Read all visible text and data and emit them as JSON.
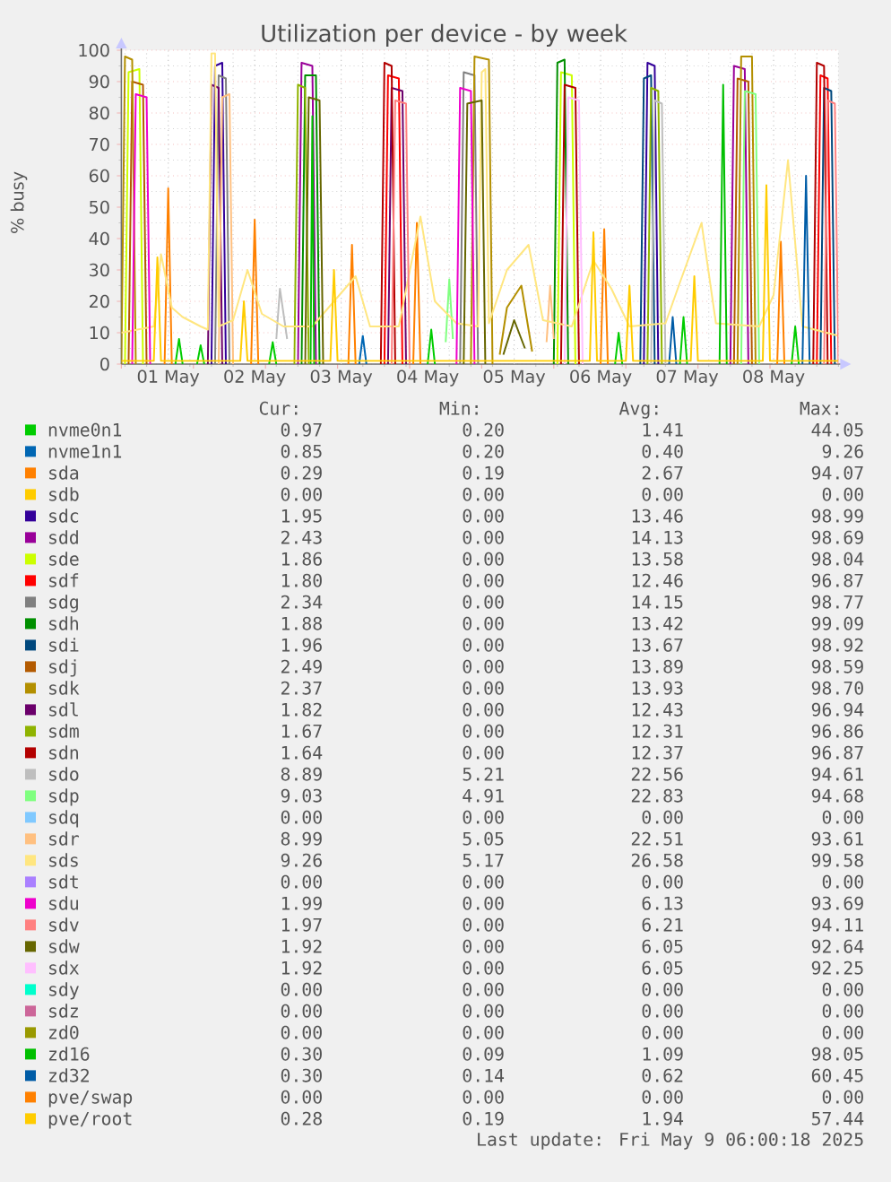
{
  "chart_data": {
    "type": "line",
    "title": "Utilization per device - by week",
    "ylabel": "% busy",
    "xlim": [
      "2025-04-30T23:00",
      "2025-05-09T06:00"
    ],
    "xticks": [
      {
        "value": "2025-05-01T00:00",
        "label": null
      },
      {
        "value": "2025-05-01T06:00",
        "label": null
      },
      {
        "value": "2025-05-01T12:00",
        "label": "01 May"
      },
      {
        "value": "2025-05-01T18:00",
        "label": null
      },
      {
        "value": "2025-05-02T00:00",
        "label": null
      },
      {
        "value": "2025-05-02T06:00",
        "label": null
      },
      {
        "value": "2025-05-02T12:00",
        "label": "02 May"
      },
      {
        "value": "2025-05-02T18:00",
        "label": null
      },
      {
        "value": "2025-05-03T00:00",
        "label": null
      },
      {
        "value": "2025-05-03T06:00",
        "label": null
      },
      {
        "value": "2025-05-03T12:00",
        "label": "03 May"
      },
      {
        "value": "2025-05-03T18:00",
        "label": null
      },
      {
        "value": "2025-05-04T00:00",
        "label": null
      },
      {
        "value": "2025-05-04T06:00",
        "label": null
      },
      {
        "value": "2025-05-04T12:00",
        "label": "04 May"
      },
      {
        "value": "2025-05-04T18:00",
        "label": null
      },
      {
        "value": "2025-05-05T00:00",
        "label": null
      },
      {
        "value": "2025-05-05T06:00",
        "label": null
      },
      {
        "value": "2025-05-05T12:00",
        "label": "05 May"
      },
      {
        "value": "2025-05-05T18:00",
        "label": null
      },
      {
        "value": "2025-05-06T00:00",
        "label": null
      },
      {
        "value": "2025-05-06T06:00",
        "label": null
      },
      {
        "value": "2025-05-06T12:00",
        "label": "06 May"
      },
      {
        "value": "2025-05-06T18:00",
        "label": null
      },
      {
        "value": "2025-05-07T00:00",
        "label": null
      },
      {
        "value": "2025-05-07T06:00",
        "label": null
      },
      {
        "value": "2025-05-07T12:00",
        "label": "07 May"
      },
      {
        "value": "2025-05-07T18:00",
        "label": null
      },
      {
        "value": "2025-05-08T00:00",
        "label": null
      },
      {
        "value": "2025-05-08T06:00",
        "label": null
      },
      {
        "value": "2025-05-08T12:00",
        "label": "08 May"
      },
      {
        "value": "2025-05-08T18:00",
        "label": null
      },
      {
        "value": "2025-05-09T00:00",
        "label": null
      },
      {
        "value": "2025-05-09T06:00",
        "label": null
      }
    ],
    "ylim": [
      0,
      100
    ],
    "yticks": [
      0,
      {
        "value": 5,
        "label": null
      },
      10,
      {
        "value": 15,
        "label": null
      },
      20,
      {
        "value": 25,
        "label": null
      },
      30,
      {
        "value": 35,
        "label": null
      },
      40,
      {
        "value": 45,
        "label": null
      },
      50,
      {
        "value": 55,
        "label": null
      },
      60,
      {
        "value": 65,
        "label": null
      },
      70,
      {
        "value": 75,
        "label": null
      },
      80,
      {
        "value": 85,
        "label": null
      },
      90,
      {
        "value": 95,
        "label": null
      },
      100
    ],
    "grid": true,
    "legend": "bottom",
    "series": [
      {
        "name": "nvme0n1",
        "color": "#00cc00",
        "x": [
          "2025-05-01T14:00",
          "2025-05-01T15:00",
          "2025-05-01T16:00",
          "2025-05-01T18:00",
          "2025-05-01T20:00",
          "2025-05-01T21:00",
          "2025-05-01T22:00",
          "2025-05-02T06:00",
          "2025-05-02T16:00",
          "2025-05-02T17:00",
          "2025-05-02T18:00",
          "2025-05-03T12:00",
          "2025-05-04T12:00",
          "2025-05-04T13:00",
          "2025-05-04T14:00",
          "2025-05-05T14:00",
          "2025-05-06T16:00",
          "2025-05-06T17:00",
          "2025-05-06T18:00",
          "2025-05-07T02:00",
          "2025-05-07T10:00",
          "2025-05-07T11:00",
          "2025-05-07T12:00",
          "2025-05-08T02:00",
          "2025-05-08T17:00",
          "2025-05-08T18:00",
          "2025-05-08T19:00"
        ],
        "values": [
          0,
          8,
          0,
          null,
          0,
          6,
          0,
          null,
          0,
          7,
          0,
          null,
          0,
          11,
          0,
          null,
          0,
          10,
          0,
          null,
          0,
          15,
          0,
          null,
          0,
          12,
          0
        ]
      },
      {
        "name": "nvme1n1",
        "color": "#0066b3",
        "x": [
          "2025-05-03T17:00",
          "2025-05-03T18:00",
          "2025-05-03T19:00"
        ],
        "values": [
          0,
          9,
          0
        ]
      },
      {
        "name": "sda",
        "color": "#ff8000",
        "x": [
          "2025-05-01T11:00",
          "2025-05-01T12:00",
          "2025-05-01T13:00",
          "2025-05-02T00:00",
          "2025-05-02T11:00",
          "2025-05-02T12:00",
          "2025-05-02T13:00",
          "2025-05-03T00:00",
          "2025-05-03T14:00",
          "2025-05-03T15:00",
          "2025-05-03T16:00",
          "2025-05-04T00:00",
          "2025-05-04T08:00",
          "2025-05-04T09:00",
          "2025-05-04T10:00",
          "2025-05-05T14:00",
          "2025-05-06T12:00",
          "2025-05-06T13:00",
          "2025-05-06T14:00",
          "2025-05-07T16:00",
          "2025-05-08T13:00",
          "2025-05-08T14:00",
          "2025-05-08T15:00"
        ],
        "values": [
          0,
          56,
          0,
          null,
          0,
          46,
          0,
          null,
          0,
          38,
          0,
          null,
          0,
          45,
          0,
          null,
          0,
          43,
          0,
          null,
          0,
          39,
          0
        ]
      },
      {
        "name": "sdb",
        "color": "#ffcc00"
      },
      {
        "name": "sdc",
        "color": "#330099",
        "x": [
          "2025-05-02T00:00",
          "2025-05-02T01:00",
          "2025-05-02T03:00",
          "2025-05-02T04:00",
          "2025-05-04T12:00",
          "2025-05-07T00:00",
          "2025-05-07T01:00",
          "2025-05-07T03:00",
          "2025-05-07T04:00"
        ],
        "values": [
          0,
          95,
          96,
          0,
          null,
          0,
          96,
          95,
          0
        ]
      },
      {
        "name": "sdd",
        "color": "#990099",
        "x": [
          "2025-05-03T00:00",
          "2025-05-03T01:00",
          "2025-05-03T04:00",
          "2025-05-03T05:00",
          "2025-05-05T12:00",
          "2025-05-08T00:00",
          "2025-05-08T01:00",
          "2025-05-08T04:00",
          "2025-05-08T05:00"
        ],
        "values": [
          0,
          96,
          95,
          0,
          null,
          0,
          95,
          94,
          0
        ]
      },
      {
        "name": "sde",
        "color": "#ccff00",
        "x": [
          "2025-05-01T00:00",
          "2025-05-01T01:00",
          "2025-05-01T04:00",
          "2025-05-01T05:00",
          "2025-05-03T12:00",
          "2025-05-06T00:00",
          "2025-05-06T01:00",
          "2025-05-06T04:00",
          "2025-05-06T05:00"
        ],
        "values": [
          0,
          93,
          94,
          0,
          null,
          0,
          93,
          92,
          0
        ]
      },
      {
        "name": "sdf",
        "color": "#ff0000",
        "x": [
          "2025-05-04T00:00",
          "2025-05-04T01:00",
          "2025-05-04T04:00",
          "2025-05-04T05:00",
          "2025-05-06T12:00",
          "2025-05-09T00:00",
          "2025-05-09T01:00",
          "2025-05-09T03:00",
          "2025-05-09T04:00"
        ],
        "values": [
          0,
          92,
          91,
          0,
          null,
          0,
          92,
          91,
          0
        ]
      },
      {
        "name": "sdg",
        "color": "#808080",
        "x": [
          "2025-05-02T01:00",
          "2025-05-02T02:00",
          "2025-05-02T04:00",
          "2025-05-02T05:00",
          "2025-05-03T12:00",
          "2025-05-04T21:00",
          "2025-05-04T22:00",
          "2025-05-05T01:00",
          "2025-05-05T02:00"
        ],
        "values": [
          0,
          92,
          91,
          0,
          null,
          0,
          93,
          92,
          0
        ]
      },
      {
        "name": "sdh",
        "color": "#008f00",
        "x": [
          "2025-05-03T01:00",
          "2025-05-03T02:00",
          "2025-05-03T05:00",
          "2025-05-03T06:00",
          "2025-05-04T12:00",
          "2025-05-05T23:00",
          "2025-05-06T00:00",
          "2025-05-06T02:00",
          "2025-05-06T03:00"
        ],
        "values": [
          0,
          92,
          92,
          0,
          null,
          0,
          96,
          97,
          0
        ]
      },
      {
        "name": "sdi",
        "color": "#00487d",
        "x": [
          "2025-05-06T23:00",
          "2025-05-07T00:00",
          "2025-05-07T02:00",
          "2025-05-07T03:00",
          "2025-05-08T12:00",
          "2025-05-09T01:00",
          "2025-05-09T02:00",
          "2025-05-09T04:00",
          "2025-05-09T05:00"
        ],
        "values": [
          0,
          91,
          92,
          0,
          null,
          0,
          88,
          87,
          0
        ]
      },
      {
        "name": "sdj",
        "color": "#b35a00",
        "x": [
          "2025-05-01T01:00",
          "2025-05-01T02:00",
          "2025-05-01T05:00",
          "2025-05-01T06:00",
          "2025-05-04T12:00",
          "2025-05-08T01:00",
          "2025-05-08T02:00",
          "2025-05-08T05:00",
          "2025-05-08T06:00"
        ],
        "values": [
          0,
          90,
          89,
          0,
          null,
          0,
          91,
          90,
          0
        ]
      },
      {
        "name": "sdk",
        "color": "#b38f00",
        "x": [
          "2025-04-30T23:00",
          "2025-05-01T00:00",
          "2025-05-01T02:00",
          "2025-05-01T03:00",
          "2025-05-02T12:00",
          "2025-05-05T00:00",
          "2025-05-05T01:00",
          "2025-05-05T05:00",
          "2025-05-05T06:00",
          "2025-05-05T07:00",
          "2025-05-05T08:00",
          "2025-05-05T10:00",
          "2025-05-05T14:00",
          "2025-05-05T17:00",
          "2025-05-06T12:00",
          "2025-05-08T02:00",
          "2025-05-08T03:00",
          "2025-05-08T06:00",
          "2025-05-08T07:00"
        ],
        "values": [
          0,
          98,
          97,
          0,
          null,
          0,
          98,
          97,
          0,
          null,
          3,
          18,
          25,
          4,
          null,
          0,
          98,
          98,
          0
        ]
      },
      {
        "name": "sdl",
        "color": "#6b006b",
        "x": [
          "2025-05-01T23:00",
          "2025-05-02T00:00",
          "2025-05-02T02:00",
          "2025-05-02T03:00",
          "2025-05-03T12:00",
          "2025-05-04T01:00",
          "2025-05-04T02:00",
          "2025-05-04T05:00",
          "2025-05-04T06:00"
        ],
        "values": [
          0,
          89,
          88,
          0,
          null,
          0,
          88,
          87,
          0
        ]
      },
      {
        "name": "sdm",
        "color": "#8fb300",
        "x": [
          "2025-05-02T23:00",
          "2025-05-03T00:00",
          "2025-05-03T02:00",
          "2025-05-03T03:00",
          "2025-05-05T12:00",
          "2025-05-07T01:00",
          "2025-05-07T02:00",
          "2025-05-07T04:00",
          "2025-05-07T05:00"
        ],
        "values": [
          0,
          89,
          88,
          0,
          null,
          0,
          88,
          87,
          0
        ]
      },
      {
        "name": "sdn",
        "color": "#b30000",
        "x": [
          "2025-05-03T23:00",
          "2025-05-04T00:00",
          "2025-05-04T02:00",
          "2025-05-04T03:00",
          "2025-05-05T12:00",
          "2025-05-06T01:00",
          "2025-05-06T02:00",
          "2025-05-06T05:00",
          "2025-05-06T06:00",
          "2025-05-07T12:00",
          "2025-05-08T23:00",
          "2025-05-09T00:00",
          "2025-05-09T02:00",
          "2025-05-09T03:00"
        ],
        "values": [
          0,
          96,
          95,
          0,
          null,
          0,
          89,
          88,
          0,
          null,
          0,
          96,
          95,
          0
        ]
      },
      {
        "name": "sdo",
        "color": "#bebebe",
        "x": [
          "2025-05-02T18:00",
          "2025-05-02T19:00",
          "2025-05-02T21:00",
          "2025-05-04T12:00",
          "2025-05-07T02:00",
          "2025-05-07T03:00",
          "2025-05-07T05:00",
          "2025-05-07T06:00"
        ],
        "values": [
          8,
          24,
          8,
          null,
          0,
          84,
          83,
          0
        ]
      },
      {
        "name": "sdp",
        "color": "#80ff80",
        "x": [
          "2025-05-04T17:00",
          "2025-05-04T18:00",
          "2025-05-04T19:00",
          "2025-05-06T12:00",
          "2025-05-08T03:00",
          "2025-05-08T04:00",
          "2025-05-08T07:00",
          "2025-05-08T08:00"
        ],
        "values": [
          7,
          27,
          8,
          null,
          0,
          87,
          86,
          0
        ]
      },
      {
        "name": "sdq",
        "color": "#80c9ff"
      },
      {
        "name": "sdr",
        "color": "#ffc080",
        "x": [
          "2025-05-02T02:00",
          "2025-05-02T03:00",
          "2025-05-02T05:00",
          "2025-05-02T06:00",
          "2025-05-03T12:00",
          "2025-05-05T21:00",
          "2025-05-05T22:00",
          "2025-05-05T23:00"
        ],
        "values": [
          0,
          85,
          86,
          0,
          null,
          7,
          25,
          8
        ]
      },
      {
        "name": "sds",
        "color": "#ffe680",
        "x": [
          "2025-04-30T23:00",
          "2025-05-01T08:00",
          "2025-05-01T10:00",
          "2025-05-01T13:00",
          "2025-05-01T16:00",
          "2025-05-01T21:00",
          "2025-05-01T23:00",
          "2025-05-02T00:00",
          "2025-05-02T01:00",
          "2025-05-02T02:00",
          "2025-05-02T06:00",
          "2025-05-02T10:00",
          "2025-05-02T14:00",
          "2025-05-02T20:00",
          "2025-05-03T04:00",
          "2025-05-03T10:00",
          "2025-05-03T16:00",
          "2025-05-03T20:00",
          "2025-05-04T04:00",
          "2025-05-04T10:00",
          "2025-05-04T14:00",
          "2025-05-04T20:00",
          "2025-05-05T02:00",
          "2025-05-05T03:00",
          "2025-05-05T04:00",
          "2025-05-05T05:00",
          "2025-05-05T10:00",
          "2025-05-05T16:00",
          "2025-05-05T20:00",
          "2025-05-06T04:00",
          "2025-05-06T10:00",
          "2025-05-06T15:00",
          "2025-05-06T20:00",
          "2025-05-07T06:00",
          "2025-05-07T10:00",
          "2025-05-07T16:00",
          "2025-05-07T20:00",
          "2025-05-08T08:00",
          "2025-05-08T12:00",
          "2025-05-08T16:00",
          "2025-05-08T20:00",
          "2025-05-09T06:00"
        ],
        "values": [
          10,
          12,
          35,
          18,
          15,
          12,
          11,
          99,
          99,
          12,
          14,
          30,
          16,
          12,
          12,
          20,
          28,
          12,
          12,
          47,
          20,
          13,
          12,
          93,
          94,
          13,
          30,
          38,
          14,
          12,
          33,
          24,
          12,
          13,
          26,
          45,
          13,
          12,
          22,
          65,
          12,
          9
        ]
      },
      {
        "name": "sdt",
        "color": "#aa80ff"
      },
      {
        "name": "sdu",
        "color": "#ee00cc",
        "x": [
          "2025-05-01T02:00",
          "2025-05-01T03:00",
          "2025-05-01T06:00",
          "2025-05-01T07:00",
          "2025-05-02T12:00",
          "2025-05-04T20:00",
          "2025-05-04T21:00",
          "2025-05-05T00:00",
          "2025-05-05T01:00"
        ],
        "values": [
          0,
          86,
          85,
          0,
          null,
          0,
          88,
          87,
          0
        ]
      },
      {
        "name": "sdv",
        "color": "#ff8080",
        "x": [
          "2025-05-04T02:00",
          "2025-05-04T03:00",
          "2025-05-04T06:00",
          "2025-05-04T07:00",
          "2025-05-06T12:00",
          "2025-05-09T02:00",
          "2025-05-09T03:00",
          "2025-05-09T05:00",
          "2025-05-09T06:00"
        ],
        "values": [
          0,
          84,
          83,
          0,
          null,
          0,
          84,
          83,
          0
        ]
      },
      {
        "name": "sdw",
        "color": "#666600",
        "x": [
          "2025-05-03T02:00",
          "2025-05-03T03:00",
          "2025-05-03T06:00",
          "2025-05-03T07:00",
          "2025-05-04T12:00",
          "2025-05-04T22:00",
          "2025-05-04T23:00",
          "2025-05-05T03:00",
          "2025-05-05T04:00",
          "2025-05-05T07:00",
          "2025-05-05T09:00",
          "2025-05-05T12:00",
          "2025-05-05T15:00"
        ],
        "values": [
          0,
          85,
          84,
          0,
          null,
          0,
          83,
          84,
          0,
          null,
          3,
          14,
          5
        ]
      },
      {
        "name": "sdx",
        "color": "#ffbfff",
        "x": [
          "2025-05-06T02:00",
          "2025-05-06T03:00",
          "2025-05-06T06:00",
          "2025-05-06T07:00"
        ],
        "values": [
          0,
          85,
          84,
          0
        ]
      },
      {
        "name": "sdy",
        "color": "#00ffcc"
      },
      {
        "name": "sdz",
        "color": "#cc6699"
      },
      {
        "name": "zd0",
        "color": "#999900"
      },
      {
        "name": "zd16",
        "color": "#00bf00",
        "x": [
          "2025-05-03T03:30",
          "2025-05-03T04:00",
          "2025-05-03T04:30",
          "2025-05-05T12:00",
          "2025-05-07T21:00",
          "2025-05-07T22:00",
          "2025-05-07T23:00"
        ],
        "values": [
          0,
          79,
          0,
          null,
          0,
          89,
          0
        ]
      },
      {
        "name": "zd32",
        "color": "#005ca6",
        "x": [
          "2025-05-07T07:00",
          "2025-05-07T08:00",
          "2025-05-07T09:00",
          "2025-05-08T12:00",
          "2025-05-08T20:00",
          "2025-05-08T21:00",
          "2025-05-08T22:00"
        ],
        "values": [
          0,
          15,
          0,
          null,
          0,
          60,
          0
        ]
      },
      {
        "name": "pve/swap",
        "color": "#ff8000"
      },
      {
        "name": "pve/root",
        "color": "#ffcc00",
        "x": [
          "2025-04-30T23:00",
          "2025-05-01T08:00",
          "2025-05-01T09:00",
          "2025-05-01T10:00",
          "2025-05-02T08:00",
          "2025-05-02T09:00",
          "2025-05-02T10:00",
          "2025-05-03T09:00",
          "2025-05-03T10:00",
          "2025-05-03T11:00",
          "2025-05-06T09:00",
          "2025-05-06T10:00",
          "2025-05-06T11:00",
          "2025-05-06T19:00",
          "2025-05-06T20:00",
          "2025-05-06T21:00",
          "2025-05-07T13:00",
          "2025-05-07T14:00",
          "2025-05-07T15:00",
          "2025-05-08T09:00",
          "2025-05-08T10:00",
          "2025-05-08T11:00",
          "2025-05-09T06:00"
        ],
        "values": [
          1,
          1,
          34,
          1,
          1,
          20,
          1,
          1,
          30,
          1,
          1,
          42,
          1,
          1,
          25,
          1,
          1,
          28,
          1,
          1,
          57,
          1,
          1
        ]
      }
    ],
    "annotations": [
      "Cur:",
      "Min:",
      "Avg:",
      "Max:",
      "0.97",
      "0.20",
      "1.41",
      "44.05",
      "0.85",
      "0.20",
      "0.40",
      "9.26",
      "0.29",
      "0.19",
      "2.67",
      "94.07",
      "0.00",
      "0.00",
      "0.00",
      "0.00",
      "1.95",
      "0.00",
      "13.46",
      "98.99",
      "2.43",
      "0.00",
      "14.13",
      "98.69",
      "1.86",
      "0.00",
      "13.58",
      "98.04",
      "1.80",
      "0.00",
      "12.46",
      "96.87",
      "2.34",
      "0.00",
      "14.15",
      "98.77",
      "1.88",
      "0.00",
      "13.42",
      "99.09",
      "1.96",
      "0.00",
      "13.67",
      "98.92",
      "2.49",
      "0.00",
      "13.89",
      "98.59",
      "2.37",
      "0.00",
      "13.93",
      "98.70",
      "1.82",
      "0.00",
      "12.43",
      "96.94",
      "1.67",
      "0.00",
      "12.31",
      "96.86",
      "1.64",
      "0.00",
      "12.37",
      "96.87",
      "8.89",
      "5.21",
      "22.56",
      "94.61",
      "9.03",
      "4.91",
      "22.83",
      "94.68",
      "0.00",
      "0.00",
      "0.00",
      "0.00",
      "8.99",
      "5.05",
      "22.51",
      "93.61",
      "9.26",
      "5.17",
      "26.58",
      "99.58",
      "0.00",
      "0.00",
      "0.00",
      "0.00",
      "1.99",
      "0.00",
      "6.13",
      "93.69",
      "1.97",
      "0.00",
      "6.21",
      "94.11",
      "1.92",
      "0.00",
      "6.05",
      "92.64",
      "1.92",
      "0.00",
      "6.05",
      "92.25",
      "0.00",
      "0.00",
      "0.00",
      "0.00",
      "0.00",
      "0.00",
      "0.00",
      "0.00",
      "0.00",
      "0.00",
      "0.00",
      "0.00",
      "0.30",
      "0.09",
      "1.09",
      "98.05",
      "0.30",
      "0.14",
      "0.62",
      "60.45",
      "0.00",
      "0.00",
      "0.00",
      "0.00",
      "0.28",
      "0.19",
      "1.94",
      "57.44",
      "Last update: Fri May  9 06:00:18 2025"
    ]
  }
}
